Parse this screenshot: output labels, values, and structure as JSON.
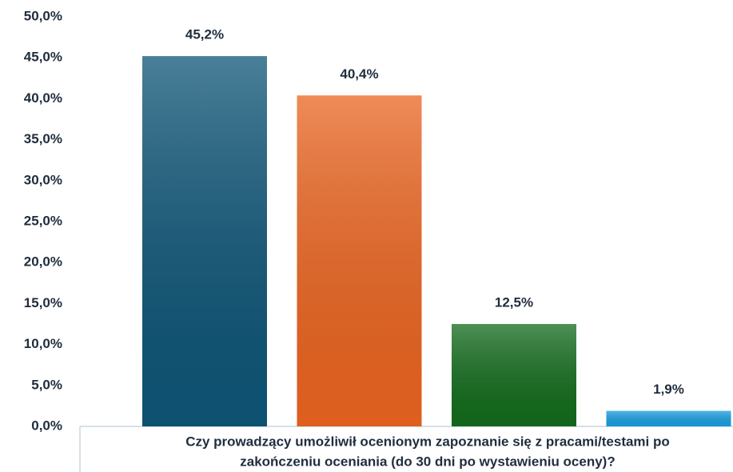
{
  "chart_data": {
    "type": "bar",
    "x_label": [
      "Czy prowadzący umożliwił ocenionym zapoznanie się z pracami/testami po",
      "zakończeniu oceniania (do 30 dni po wystawieniu oceny)?"
    ],
    "categories": [
      null,
      null,
      null,
      null
    ],
    "values": [
      45.2,
      40.4,
      12.5,
      1.9
    ],
    "value_labels": [
      "45,2%",
      "40,4%",
      "12,5%",
      "1,9%"
    ],
    "colors": [
      "#0e5577",
      "#ea6420",
      "#136b1c",
      "#1a9ee0"
    ],
    "ylim": [
      0,
      50
    ],
    "yticks": [
      {
        "value": 0,
        "label": "0,0%"
      },
      {
        "value": 5,
        "label": "5,0%"
      },
      {
        "value": 10,
        "label": "10,0%"
      },
      {
        "value": 15,
        "label": "15,0%"
      },
      {
        "value": 20,
        "label": "20,0%"
      },
      {
        "value": 25,
        "label": "25,0%"
      },
      {
        "value": 30,
        "label": "30,0%"
      },
      {
        "value": 35,
        "label": "35,0%"
      },
      {
        "value": 40,
        "label": "40,0%"
      },
      {
        "value": 45,
        "label": "45,0%"
      },
      {
        "value": 50,
        "label": "50,0%"
      }
    ],
    "grid": false
  }
}
